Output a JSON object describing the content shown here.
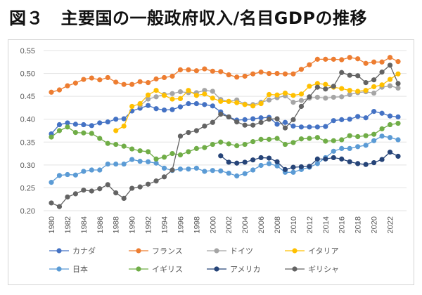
{
  "title": "図３　主要国の一般政府収入/名目GDPの推移",
  "chart_data": {
    "type": "line",
    "title": "図３　主要国の一般政府収入/名目GDPの推移",
    "xlabel": "",
    "ylabel": "",
    "ylim": [
      0.2,
      0.55
    ],
    "yticks": [
      "0.20",
      "0.25",
      "0.30",
      "0.35",
      "0.40",
      "0.45",
      "0.50",
      "0.55"
    ],
    "ytick_values": [
      0.2,
      0.25,
      0.3,
      0.35,
      0.4,
      0.45,
      0.5,
      0.55
    ],
    "x": [
      1980,
      1981,
      1982,
      1983,
      1984,
      1985,
      1986,
      1987,
      1988,
      1989,
      1990,
      1991,
      1992,
      1993,
      1994,
      1995,
      1996,
      1997,
      1998,
      1999,
      2000,
      2001,
      2002,
      2003,
      2004,
      2005,
      2006,
      2007,
      2008,
      2009,
      2010,
      2011,
      2012,
      2013,
      2014,
      2015,
      2016,
      2017,
      2018,
      2019,
      2020,
      2021,
      2022,
      2023
    ],
    "xticks": [
      "1980",
      "1982",
      "1984",
      "1986",
      "1988",
      "1990",
      "1992",
      "1994",
      "1996",
      "1998",
      "2000",
      "2002",
      "2004",
      "2006",
      "2008",
      "2010",
      "2012",
      "2014",
      "2016",
      "2018",
      "2020",
      "2022"
    ],
    "grid": true,
    "legend_position": "bottom",
    "series": [
      {
        "name": "カナダ",
        "color": "#4472c4",
        "values": [
          0.368,
          0.388,
          0.392,
          0.389,
          0.388,
          0.386,
          0.392,
          0.394,
          0.4,
          0.401,
          0.418,
          0.424,
          0.43,
          0.423,
          0.42,
          0.421,
          0.427,
          0.434,
          0.434,
          0.432,
          0.429,
          0.416,
          0.405,
          0.398,
          0.399,
          0.401,
          0.403,
          0.404,
          0.389,
          0.393,
          0.385,
          0.383,
          0.383,
          0.383,
          0.384,
          0.397,
          0.399,
          0.4,
          0.406,
          0.403,
          0.417,
          0.413,
          0.407,
          0.405
        ]
      },
      {
        "name": "フランス",
        "color": "#ed7d31",
        "values": [
          0.459,
          0.464,
          0.473,
          0.479,
          0.487,
          0.49,
          0.486,
          0.491,
          0.481,
          0.476,
          0.476,
          0.482,
          0.48,
          0.488,
          0.491,
          0.494,
          0.508,
          0.508,
          0.506,
          0.51,
          0.505,
          0.504,
          0.497,
          0.492,
          0.494,
          0.499,
          0.503,
          0.5,
          0.5,
          0.499,
          0.499,
          0.509,
          0.519,
          0.531,
          0.531,
          0.531,
          0.53,
          0.535,
          0.532,
          0.522,
          0.525,
          0.525,
          0.535,
          0.526
        ]
      },
      {
        "name": "ドイツ",
        "color": "#a5a5a5",
        "values": [
          null,
          null,
          null,
          null,
          null,
          null,
          null,
          null,
          null,
          null,
          null,
          0.43,
          0.444,
          0.449,
          0.454,
          0.456,
          0.46,
          0.458,
          0.458,
          0.463,
          0.461,
          0.443,
          0.439,
          0.442,
          0.433,
          0.432,
          0.437,
          0.442,
          0.447,
          0.451,
          0.437,
          0.441,
          0.446,
          0.448,
          0.446,
          0.448,
          0.449,
          0.454,
          0.458,
          0.46,
          0.457,
          0.47,
          0.473,
          0.468
        ]
      },
      {
        "name": "イタリア",
        "color": "#ffc000",
        "values": [
          null,
          null,
          null,
          null,
          null,
          null,
          null,
          null,
          0.375,
          0.385,
          0.428,
          0.434,
          0.453,
          0.463,
          0.452,
          0.444,
          0.445,
          0.463,
          0.452,
          0.455,
          0.446,
          0.439,
          0.439,
          0.436,
          0.432,
          0.429,
          0.434,
          0.454,
          0.453,
          0.457,
          0.452,
          0.455,
          0.472,
          0.478,
          0.476,
          0.47,
          0.467,
          0.463,
          0.461,
          0.463,
          0.471,
          0.475,
          0.487,
          0.499
        ]
      },
      {
        "name": "日本",
        "color": "#5b9bd5",
        "values": [
          0.262,
          0.277,
          0.279,
          0.278,
          0.286,
          0.289,
          0.289,
          0.302,
          0.302,
          0.302,
          0.312,
          0.308,
          0.307,
          0.304,
          0.293,
          0.288,
          0.291,
          0.291,
          0.293,
          0.286,
          0.288,
          0.287,
          0.282,
          0.276,
          0.281,
          0.289,
          0.299,
          0.303,
          0.298,
          0.284,
          0.284,
          0.29,
          0.295,
          0.303,
          0.316,
          0.33,
          0.336,
          0.336,
          0.34,
          0.343,
          0.353,
          0.363,
          0.36,
          0.355
        ]
      },
      {
        "name": "イギリス",
        "color": "#70ad47",
        "values": [
          0.361,
          0.375,
          0.383,
          0.371,
          0.37,
          0.369,
          0.358,
          0.347,
          0.345,
          0.341,
          0.335,
          0.331,
          0.329,
          0.313,
          0.317,
          0.325,
          0.322,
          0.329,
          0.336,
          0.338,
          0.345,
          0.35,
          0.346,
          0.342,
          0.345,
          0.351,
          0.356,
          0.356,
          0.358,
          0.345,
          0.349,
          0.357,
          0.358,
          0.36,
          0.352,
          0.353,
          0.355,
          0.364,
          0.362,
          0.364,
          0.367,
          0.379,
          0.388,
          0.391
        ]
      },
      {
        "name": "アメリカ",
        "color": "#264478",
        "values": [
          null,
          null,
          null,
          null,
          null,
          null,
          null,
          null,
          null,
          null,
          null,
          null,
          null,
          null,
          null,
          null,
          null,
          null,
          null,
          null,
          null,
          0.32,
          0.306,
          0.304,
          0.306,
          0.311,
          0.316,
          0.315,
          0.307,
          0.29,
          0.295,
          0.296,
          0.297,
          0.313,
          0.313,
          0.316,
          0.313,
          0.307,
          0.303,
          0.301,
          0.305,
          0.312,
          0.328,
          0.319
        ]
      },
      {
        "name": "ギリシャ",
        "color": "#636363",
        "values": [
          0.217,
          0.209,
          0.23,
          0.237,
          0.245,
          0.243,
          0.248,
          0.257,
          0.239,
          0.227,
          0.249,
          0.252,
          0.258,
          0.265,
          0.274,
          0.289,
          0.363,
          0.371,
          0.375,
          0.385,
          0.393,
          0.411,
          0.405,
          0.394,
          0.387,
          0.387,
          0.393,
          0.4,
          0.401,
          0.381,
          0.399,
          0.428,
          0.449,
          0.47,
          0.466,
          0.472,
          0.502,
          0.496,
          0.495,
          0.48,
          0.486,
          0.503,
          0.518,
          0.478
        ]
      }
    ]
  }
}
